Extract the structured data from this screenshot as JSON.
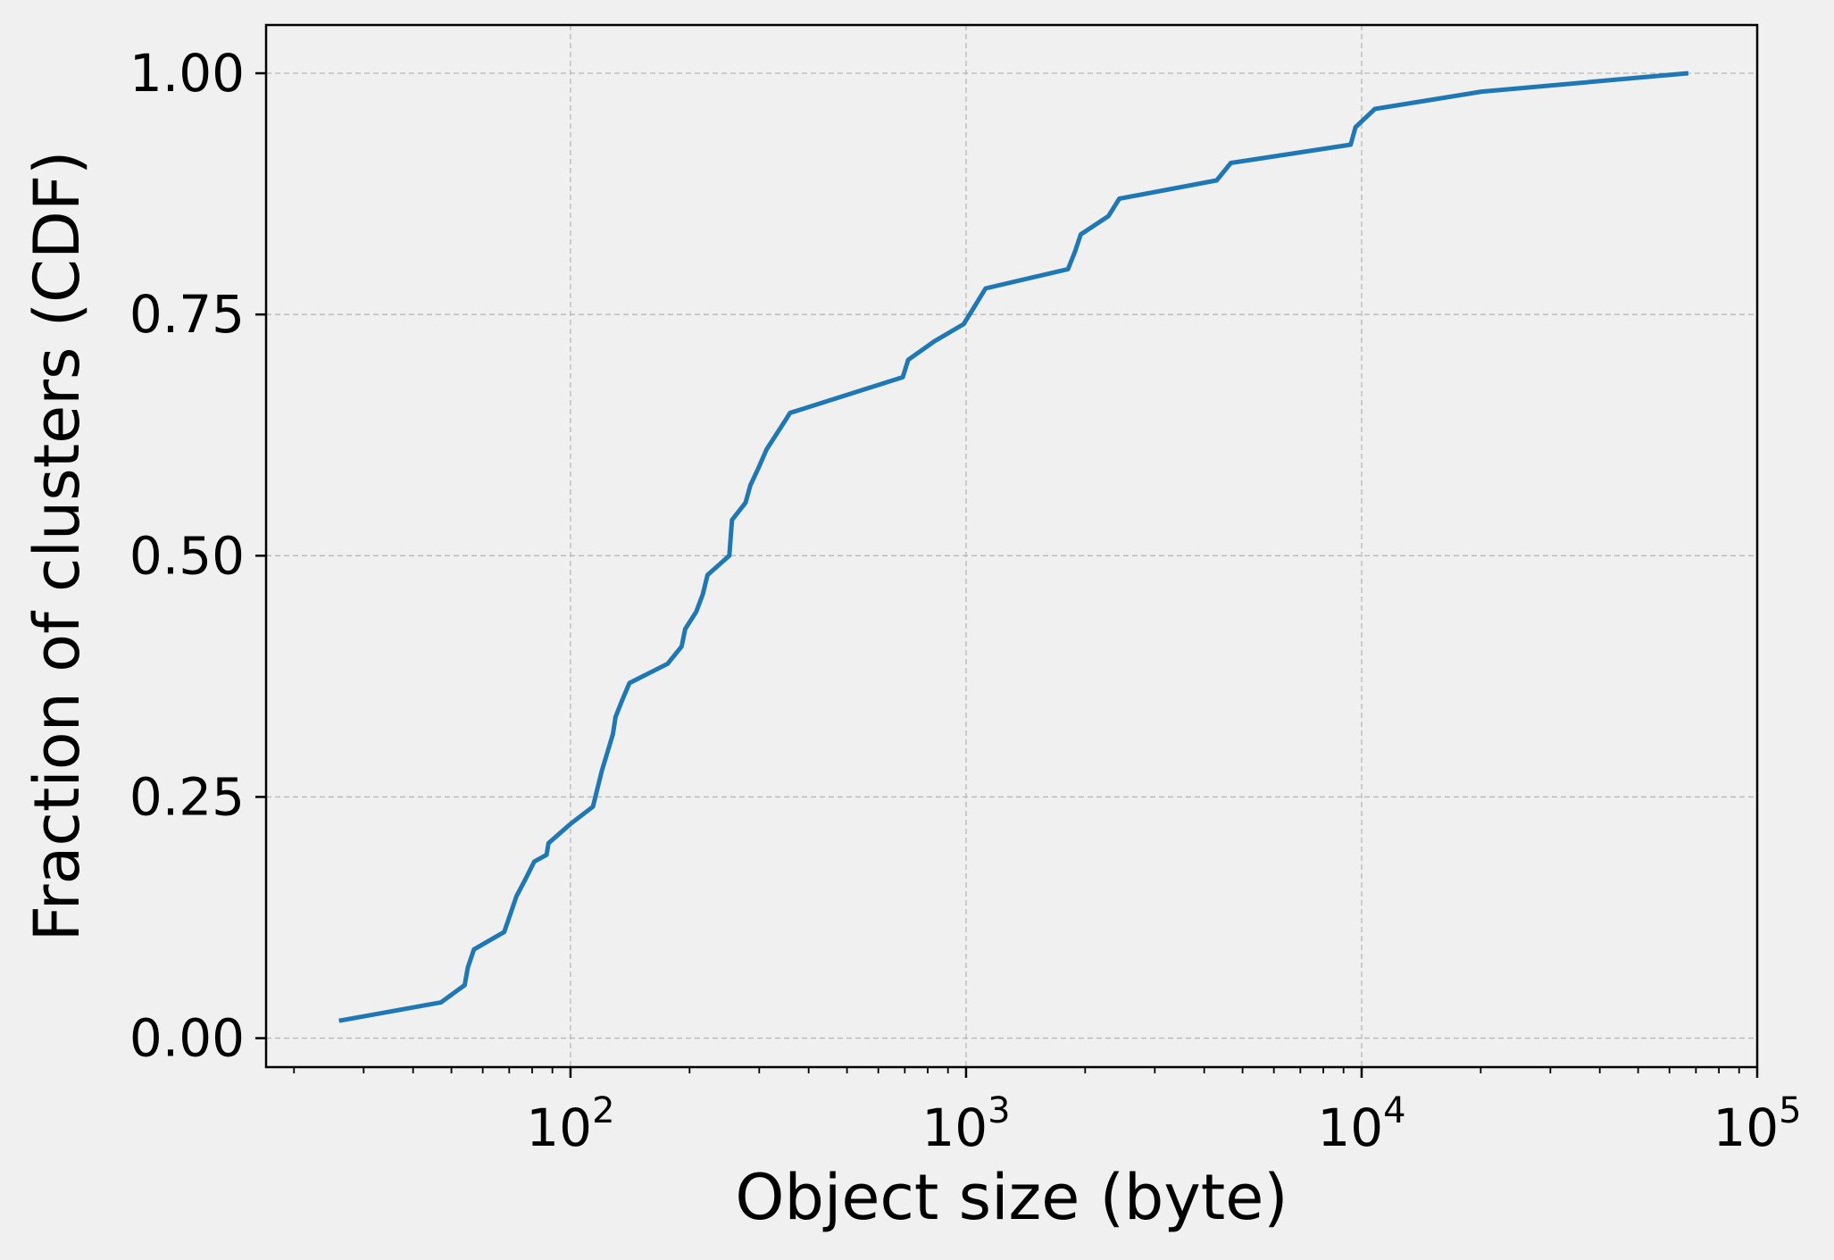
{
  "chart_data": {
    "type": "line",
    "xlabel": "Object size (byte)",
    "ylabel": "Fraction of clusters (CDF)",
    "x_scale": "log",
    "xlim": [
      17,
      100000
    ],
    "ylim": [
      -0.03,
      1.05
    ],
    "grid": true,
    "x_ticks": [
      {
        "value": 100,
        "base": "10",
        "exp": "2"
      },
      {
        "value": 1000,
        "base": "10",
        "exp": "3"
      },
      {
        "value": 10000,
        "base": "10",
        "exp": "4"
      },
      {
        "value": 100000,
        "base": "10",
        "exp": "5"
      }
    ],
    "y_ticks": [
      {
        "value": 0.0,
        "label": "0.00"
      },
      {
        "value": 0.25,
        "label": "0.25"
      },
      {
        "value": 0.5,
        "label": "0.50"
      },
      {
        "value": 0.75,
        "label": "0.75"
      },
      {
        "value": 1.0,
        "label": "1.00"
      }
    ],
    "series": [
      {
        "color": "#1f77b4",
        "x": [
          26,
          47,
          54,
          55,
          57,
          68,
          73,
          77,
          81,
          87,
          88,
          100,
          114,
          120,
          128,
          130,
          135,
          141,
          176,
          191,
          195,
          208,
          216,
          222,
          252,
          256,
          277,
          285,
          298,
          313,
          349,
          359,
          692,
          714,
          830,
          986,
          1050,
          1120,
          1810,
          1885,
          1950,
          2290,
          2440,
          4300,
          4670,
          9380,
          9650,
          10800,
          20100,
          67000
        ],
        "y": [
          0.018,
          0.037,
          0.055,
          0.073,
          0.092,
          0.11,
          0.147,
          0.165,
          0.183,
          0.19,
          0.202,
          0.222,
          0.24,
          0.277,
          0.315,
          0.333,
          0.35,
          0.368,
          0.388,
          0.406,
          0.424,
          0.442,
          0.46,
          0.48,
          0.5,
          0.537,
          0.555,
          0.573,
          0.59,
          0.61,
          0.64,
          0.648,
          0.685,
          0.703,
          0.722,
          0.74,
          0.758,
          0.777,
          0.797,
          0.815,
          0.833,
          0.852,
          0.87,
          0.889,
          0.907,
          0.926,
          0.944,
          0.963,
          0.981,
          1.0
        ]
      }
    ]
  }
}
